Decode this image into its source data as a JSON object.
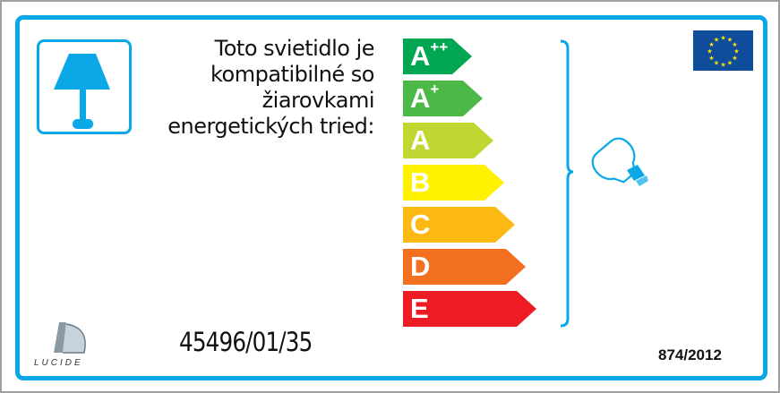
{
  "intro_text": "Toto svietidlo je kompatibilné so žiarovkami energetických tried:",
  "energy_classes": [
    {
      "label": "A",
      "sup": "++",
      "color": "#00a651"
    },
    {
      "label": "A",
      "sup": "+",
      "color": "#4cb848"
    },
    {
      "label": "A",
      "sup": "",
      "color": "#bfd730"
    },
    {
      "label": "B",
      "sup": "",
      "color": "#fff200"
    },
    {
      "label": "C",
      "sup": "",
      "color": "#fdb913"
    },
    {
      "label": "D",
      "sup": "",
      "color": "#f37021"
    },
    {
      "label": "E",
      "sup": "",
      "color": "#ed1c24"
    }
  ],
  "model_number": "45496/01/35",
  "regulation": "874/2012",
  "brand_logo": "LUCIDE",
  "accent_color": "#0aa8e6",
  "icons": [
    "table-lamp-icon",
    "light-bulb-icon",
    "eu-flag-icon",
    "lucide-logo"
  ]
}
